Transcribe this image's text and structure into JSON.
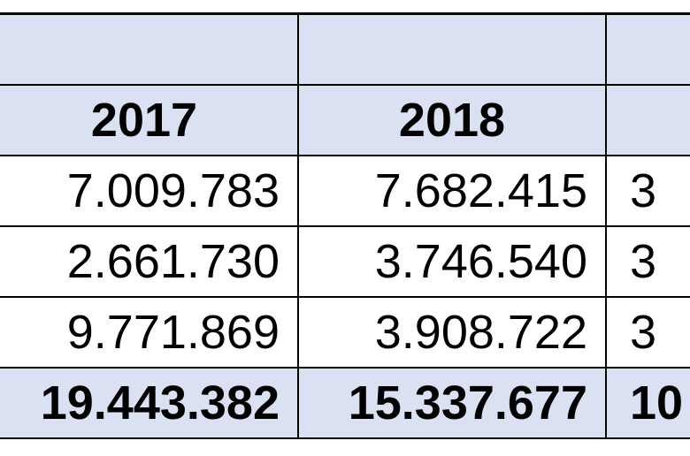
{
  "table": {
    "header": {
      "blank": [
        "",
        "",
        ""
      ],
      "years": [
        "2017",
        "2018",
        ""
      ]
    },
    "rows": [
      [
        "7.009.783",
        "7.682.415",
        "3"
      ],
      [
        "2.661.730",
        "3.746.540",
        "3"
      ],
      [
        "9.771.869",
        "3.908.722",
        "3"
      ]
    ],
    "total": [
      "19.443.382",
      "15.337.677",
      "10"
    ]
  },
  "colors": {
    "header_fill": "#d9e1f2",
    "border": "#000000",
    "text": "#000000"
  }
}
